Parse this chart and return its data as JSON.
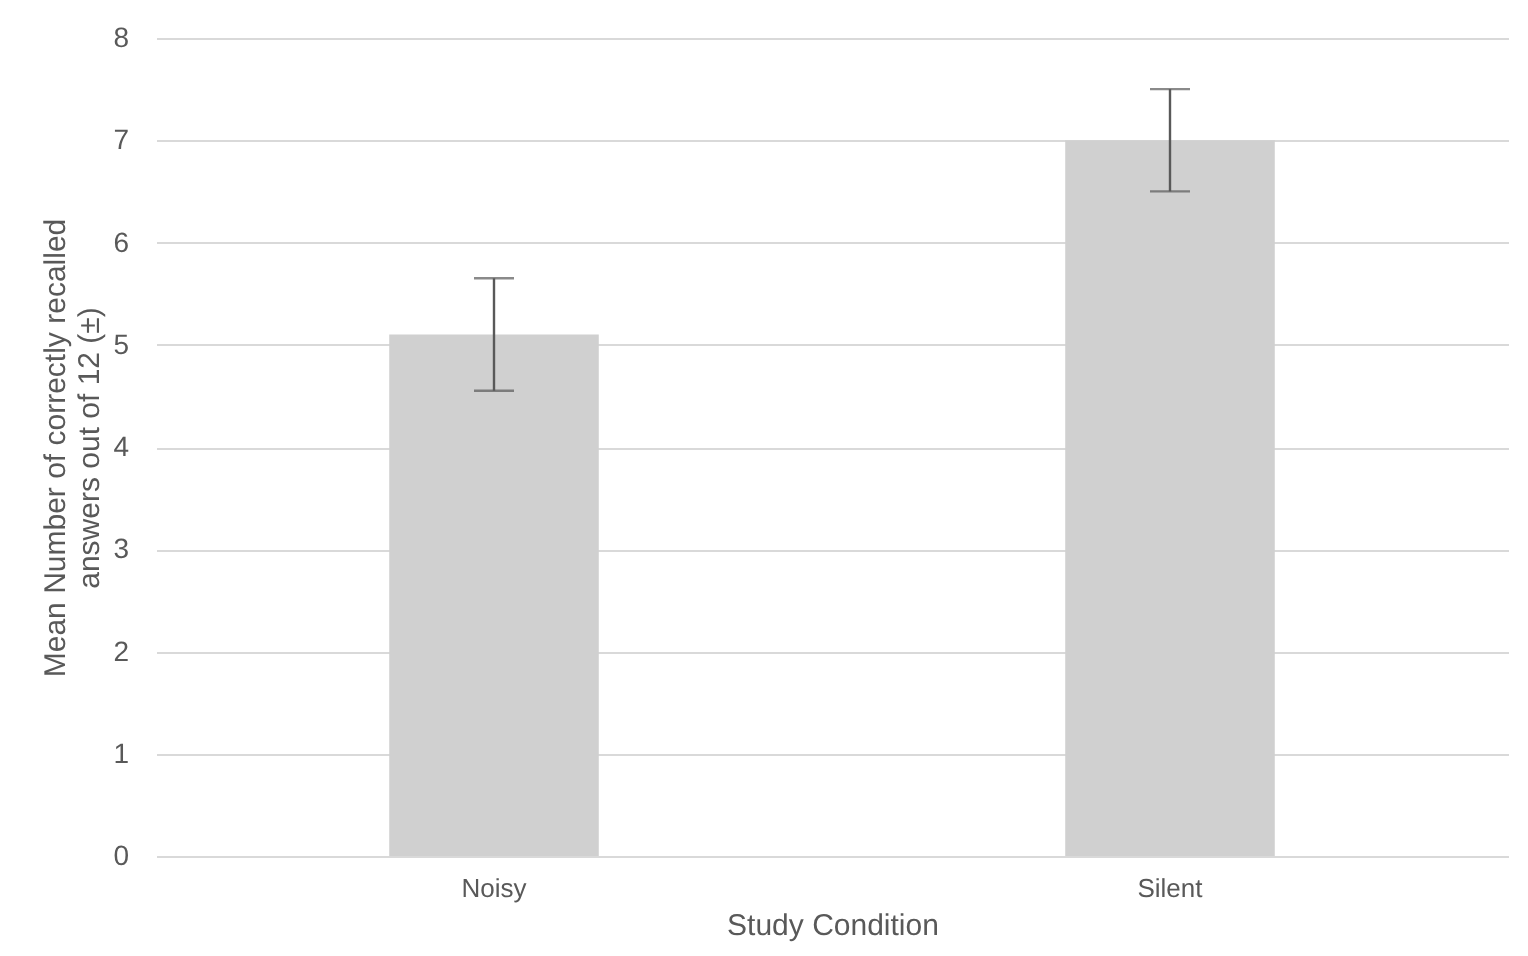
{
  "chart_data": {
    "type": "bar",
    "xlabel": "Study Condition",
    "ylabel": "Mean Number of correctly recalled answers out of 12 (±)",
    "categories": [
      "Noisy",
      "Silent"
    ],
    "values": [
      5.1,
      7.0
    ],
    "errors": [
      0.55,
      0.5
    ],
    "color": "#d0d0d0",
    "ylim": [
      0,
      8
    ],
    "yticks": [
      0,
      1,
      2,
      3,
      4,
      5,
      6,
      7,
      8
    ],
    "grid": "y"
  }
}
